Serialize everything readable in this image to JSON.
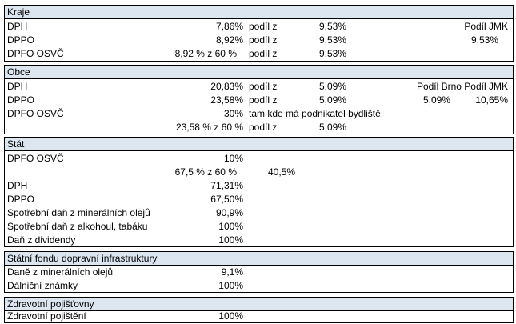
{
  "sections": {
    "kraje": {
      "title": "Kraje",
      "rows": [
        {
          "label": "DPH",
          "pct": "7,86%",
          "podil": "podíl z",
          "of": "9,53%",
          "extra_label": "Podíl JMK"
        },
        {
          "label": "DPPO",
          "pct": "8,92%",
          "podil": "podíl z",
          "of": "9,53%",
          "extra_val": "9,53%"
        },
        {
          "label": "DPFO OSVČ",
          "pct": "8,92 % z 60 %",
          "podil": "podíl z",
          "of": "9,53%"
        }
      ]
    },
    "obce": {
      "title": "Obce",
      "rows": [
        {
          "label": "DPH",
          "pct": "20,83%",
          "podil": "podíl z",
          "of": "5,09%",
          "extra_label": "Podíl Brno Podíl JMK"
        },
        {
          "label": "DPPO",
          "pct": "23,58%",
          "podil": "podíl z",
          "of": "5,09%",
          "brno": "5,09%",
          "jmk": "10,65%"
        },
        {
          "label": "DPFO OSVČ",
          "pct": "30%",
          "note": "tam kde má podnikatel bydliště"
        },
        {
          "pct": "23,58 % z 60 %",
          "podil": "podíl z",
          "of": "5,09%"
        }
      ]
    },
    "stat": {
      "title": "Stát",
      "rows": [
        {
          "label": "DPFO OSVČ",
          "pct": "10%"
        },
        {
          "pct": "67,5 % z 60 %",
          "extra": "40,5%"
        },
        {
          "label": "DPH",
          "pct": "71,31%"
        },
        {
          "label": "DPPO",
          "pct": "67,50%"
        },
        {
          "label": "Spotřební daň z minerálních olejů",
          "pct": "90,9%"
        },
        {
          "label": "Spotřební daň z alkohoul, tabáku",
          "pct": "100%"
        },
        {
          "label": "Daň z dividendy",
          "pct": "100%"
        }
      ]
    },
    "sfdi": {
      "title": "Státní fondu dopravní infrastruktury",
      "rows": [
        {
          "label": "Daně z minerálních olejů",
          "pct": "9,1%"
        },
        {
          "label": "Dálniční známky",
          "pct": "100%"
        }
      ]
    },
    "zp": {
      "title": "Zdravotní pojišťovny",
      "rows": [
        {
          "label": "Zdravotní pojištění",
          "pct": "100%"
        }
      ]
    }
  },
  "colors": {
    "header_bg": "#dce6f1",
    "border": "#000000"
  }
}
